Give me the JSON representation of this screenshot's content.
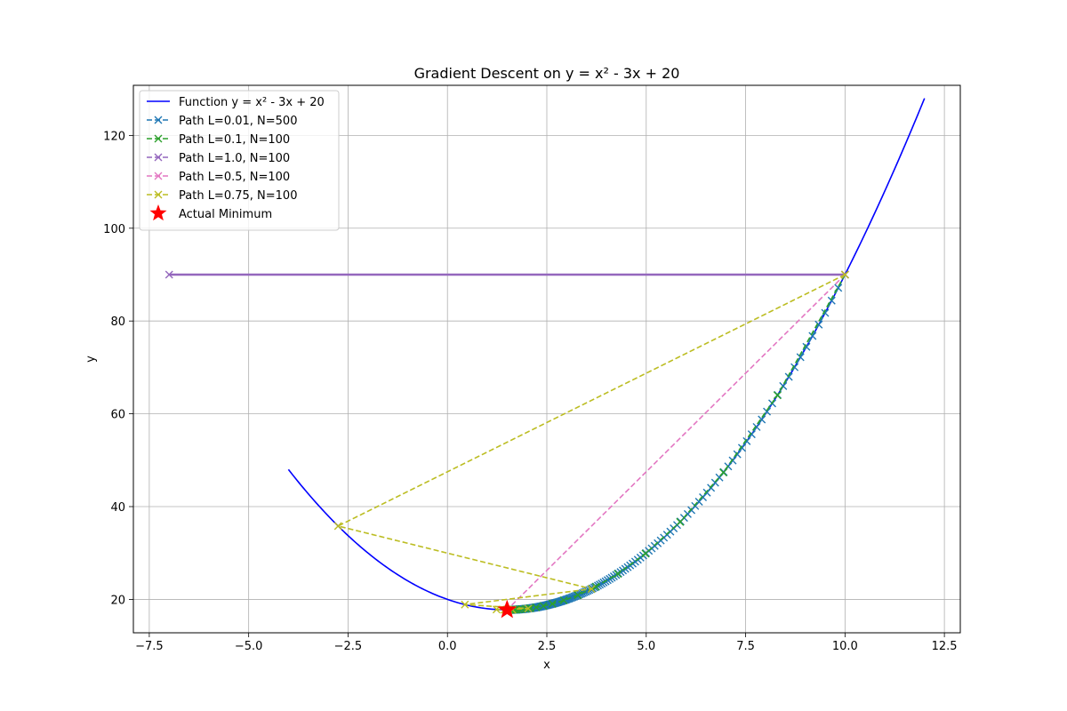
{
  "chart_data": {
    "type": "line",
    "title": "Gradient Descent on y = x² - 3x + 20",
    "xlabel": "x",
    "ylabel": "y",
    "xlim": [
      -7.9,
      12.9
    ],
    "ylim": [
      12.8,
      130.8
    ],
    "xticks": [
      -7.5,
      -5.0,
      -2.5,
      0.0,
      2.5,
      5.0,
      7.5,
      10.0,
      12.5
    ],
    "xtick_labels": [
      "−7.5",
      "−5.0",
      "−2.5",
      "0.0",
      "2.5",
      "5.0",
      "7.5",
      "10.0",
      "12.5"
    ],
    "yticks": [
      20,
      40,
      60,
      80,
      100,
      120
    ],
    "ytick_labels": [
      "20",
      "40",
      "60",
      "80",
      "100",
      "120"
    ],
    "grid": true,
    "legend_position": "top-left",
    "function": {
      "name": "Function y = x² - 3x + 20",
      "color": "#0000ff",
      "x_range": [
        -4,
        12
      ],
      "coefficients": [
        1,
        -3,
        20
      ]
    },
    "series": [
      {
        "name": "Path L=0.01, N=500",
        "color": "#1f77b4",
        "learning_rate": 0.01,
        "iterations": 500,
        "start_x": 10,
        "x_values": [
          10.0,
          9.83,
          9.6634,
          9.4999,
          9.3399,
          9.1831,
          9.0294,
          8.8788,
          8.7312,
          8.5866,
          8.4449,
          8.306,
          8.1699,
          8.0365,
          7.9057,
          7.7776,
          7.652,
          7.529,
          7.4084,
          7.2902,
          7.1744,
          7.0609,
          6.9497,
          6.8407,
          6.7339,
          6.6292,
          6.5266,
          6.426,
          6.3275,
          6.231,
          6.1363,
          6.0436,
          5.9527,
          5.8637,
          5.7764,
          5.6909,
          5.607,
          5.5249,
          5.4444,
          5.3655,
          5.2882,
          5.2124,
          5.1381,
          5.0654,
          4.994,
          4.9241,
          4.8556,
          4.7885,
          4.7227,
          4.6583,
          4.5951,
          4.5332,
          4.4725,
          4.4131,
          4.3548,
          4.2977,
          4.2418,
          4.1869,
          4.1332,
          4.0805,
          4.0289,
          3.9783,
          3.9287,
          3.8801,
          3.8325,
          3.7858,
          3.7401,
          3.6953,
          3.6514,
          3.6083,
          3.5661,
          3.5248,
          3.4843,
          3.4446,
          3.4057,
          3.3676,
          3.3302,
          3.2936,
          3.2577,
          3.2226,
          3.1881,
          3.1544,
          3.1213,
          3.0889,
          3.0571,
          3.026,
          2.9955,
          2.9656,
          2.9363,
          2.9076,
          2.8794,
          2.8518,
          2.8248,
          2.7983,
          2.7723,
          2.7469,
          2.7219,
          2.6975,
          2.6735,
          2.65,
          2.627,
          2.6045,
          2.5824,
          2.5608,
          2.5395,
          2.5188,
          2.4984,
          2.4784,
          2.4589,
          2.4397,
          2.4209,
          2.4025,
          2.3845,
          2.3668,
          2.3495,
          2.3325,
          2.3159,
          2.2996,
          2.2836,
          2.2679,
          2.2526,
          2.2375,
          2.2228,
          2.2083,
          2.1942,
          2.1803,
          2.1667,
          2.1534,
          2.1403,
          2.1275,
          2.115,
          2.1027,
          2.0906,
          2.0788,
          2.0672,
          2.0559,
          2.0448,
          2.0339,
          2.0232,
          2.0127,
          2.0025,
          1.9925,
          1.9826,
          1.973,
          1.9635,
          1.9543,
          1.9452,
          1.9363,
          1.9276,
          1.9191,
          1.9107,
          1.9025,
          1.8945,
          1.8866,
          1.8789,
          1.8713,
          1.8639,
          1.8566,
          1.8495,
          1.8425,
          1.8357,
          1.829,
          1.8224,
          1.816,
          1.8097,
          1.8035,
          1.7974,
          1.7915,
          1.7857,
          1.78,
          1.7744,
          1.7689,
          1.7635,
          1.7582,
          1.7531,
          1.748,
          1.743,
          1.7382,
          1.7334,
          1.7287,
          1.7241,
          1.7196,
          1.7152,
          1.7109,
          1.7067,
          1.7025,
          1.6985,
          1.6945,
          1.6906,
          1.6867,
          1.683,
          1.6793,
          1.6757,
          1.6722,
          1.6687,
          1.6653,
          1.662,
          1.6587,
          1.6555,
          1.6524,
          1.6493,
          1.6463,
          1.6434,
          1.6405,
          1.6377,
          1.6349,
          1.6322,
          1.6295,
          1.6269,
          1.6244,
          1.6219,
          1.6194,
          1.617,
          1.6147,
          1.6124,
          1.6101,
          1.6079,
          1.6057,
          1.6036,
          1.6015,
          1.5995,
          1.5975,
          1.5955,
          1.5936,
          1.5917,
          1.5899,
          1.5881,
          1.5863,
          1.5846,
          1.5829,
          1.5812,
          1.5796,
          1.578,
          1.5764,
          1.5749,
          1.5734,
          1.5719,
          1.5705,
          1.5691,
          1.5677,
          1.5663,
          1.565,
          1.5637,
          1.5624,
          1.5612,
          1.5599,
          1.5587,
          1.5576,
          1.5564,
          1.5553,
          1.5542,
          1.5531,
          1.552
        ]
      },
      {
        "name": "Path L=0.1, N=100",
        "color": "#2ca02c",
        "learning_rate": 0.1,
        "iterations": 100,
        "start_x": 10,
        "x_values": [
          10.0,
          8.3,
          6.94,
          5.852,
          4.9816,
          4.2853,
          3.7282,
          3.2826,
          2.9261,
          2.6409,
          2.4127,
          2.2301,
          2.0841,
          1.9673,
          1.8738,
          1.7991,
          1.7392,
          1.6914,
          1.6531,
          1.6225,
          1.598,
          1.5784,
          1.5627,
          1.5502,
          1.5401,
          1.5321,
          1.5257,
          1.5206,
          1.5164,
          1.5132,
          1.5105,
          1.5084,
          1.5067,
          1.5054,
          1.5043,
          1.5035,
          1.5028,
          1.5022,
          1.5018,
          1.5014,
          1.5011
        ]
      },
      {
        "name": "Path L=1.0, N=100",
        "color": "#9467bd",
        "learning_rate": 1.0,
        "iterations": 100,
        "start_x": 10,
        "x_values": [
          10.0,
          -7.0
        ]
      },
      {
        "name": "Path L=0.5, N=100",
        "color": "#e377c2",
        "learning_rate": 0.5,
        "iterations": 100,
        "start_x": 10,
        "x_values": [
          10.0,
          1.5
        ]
      },
      {
        "name": "Path L=0.75, N=100",
        "color": "#bcbd22",
        "learning_rate": 0.75,
        "iterations": 100,
        "start_x": 10,
        "x_values": [
          10.0,
          -2.75,
          3.625,
          0.4375,
          2.03125,
          1.234375,
          1.6328,
          1.4336,
          1.5332,
          1.4834,
          1.5083,
          1.4958,
          1.5021,
          1.499,
          1.5005
        ]
      }
    ],
    "minimum": {
      "name": "Actual Minimum",
      "x": 1.5,
      "y": 17.75,
      "color": "#ff0000",
      "marker": "star"
    }
  }
}
